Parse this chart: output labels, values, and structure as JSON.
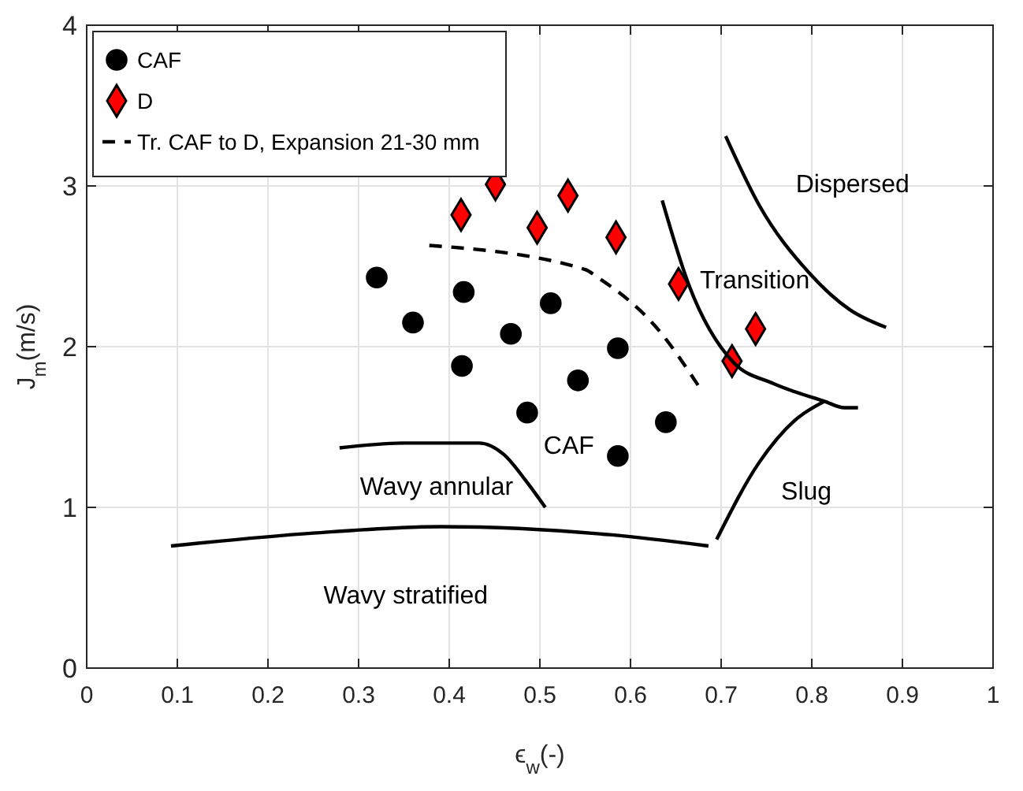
{
  "chart_data": {
    "type": "scatter",
    "xlabel": "ϵ$_{w}$(-)",
    "ylabel": "J$_{m}$(m/s)",
    "xlim": [
      0,
      1
    ],
    "ylim": [
      0,
      4
    ],
    "xticks": [
      0,
      0.1,
      0.2,
      0.3,
      0.4,
      0.5,
      0.6,
      0.7,
      0.8,
      0.9,
      1
    ],
    "yticks": [
      0,
      1,
      2,
      3,
      4
    ],
    "grid": true,
    "legend": "top left",
    "series": [
      {
        "name": "CAF",
        "marker": "circle",
        "color": "#000000",
        "x": [
          0.32,
          0.36,
          0.416,
          0.414,
          0.468,
          0.512,
          0.486,
          0.542,
          0.586,
          0.586,
          0.639
        ],
        "values": [
          2.43,
          2.15,
          2.34,
          1.88,
          2.08,
          2.27,
          1.59,
          1.79,
          1.99,
          1.32,
          1.53
        ]
      },
      {
        "name": "D",
        "marker": "diamond",
        "color": "#ff0000",
        "x": [
          0.413,
          0.451,
          0.497,
          0.531,
          0.584,
          0.653,
          0.712,
          0.738
        ],
        "values": [
          2.82,
          3.01,
          2.74,
          2.94,
          2.68,
          2.39,
          1.91,
          2.11
        ]
      },
      {
        "name": "Tr. CAF to D, Expansion 21-30 mm",
        "type": "line",
        "line_style": "dashed",
        "marker": "none",
        "color": "#000000",
        "x": [
          0.378,
          0.55,
          0.564,
          0.63,
          0.678
        ],
        "values": [
          2.63,
          2.48,
          2.43,
          2.11,
          1.73
        ]
      },
      {
        "type": "line",
        "line_style": "solid",
        "marker": "none",
        "color": "#000000",
        "x": [
          0.093,
          0.25,
          0.391,
          0.577,
          0.686
        ],
        "values": [
          0.76,
          0.84,
          0.88,
          0.83,
          0.76
        ]
      },
      {
        "type": "line",
        "line_style": "solid",
        "marker": "none",
        "color": "#000000",
        "x": [
          0.279,
          0.35,
          0.433,
          0.46,
          0.484,
          0.506
        ],
        "values": [
          1.37,
          1.4,
          1.4,
          1.33,
          1.17,
          1.0
        ]
      },
      {
        "type": "line",
        "line_style": "solid",
        "marker": "none",
        "color": "#000000",
        "x": [
          0.695,
          0.742,
          0.781,
          0.814
        ],
        "values": [
          0.8,
          1.28,
          1.54,
          1.66
        ]
      },
      {
        "type": "line",
        "line_style": "solid",
        "marker": "none",
        "color": "#000000",
        "x": [
          0.635,
          0.664,
          0.714,
          0.758,
          0.814,
          0.836,
          0.851
        ],
        "values": [
          2.91,
          2.39,
          1.9,
          1.77,
          1.66,
          1.62,
          1.62
        ]
      },
      {
        "type": "line",
        "line_style": "solid",
        "marker": "none",
        "color": "#000000",
        "x": [
          0.705,
          0.742,
          0.797,
          0.842,
          0.882
        ],
        "values": [
          3.31,
          2.88,
          2.46,
          2.23,
          2.12
        ]
      }
    ],
    "annotations": [
      "Dispersed",
      "Transition",
      "CAF",
      "Wavy annular",
      "Wavy stratified",
      "Slug"
    ]
  }
}
